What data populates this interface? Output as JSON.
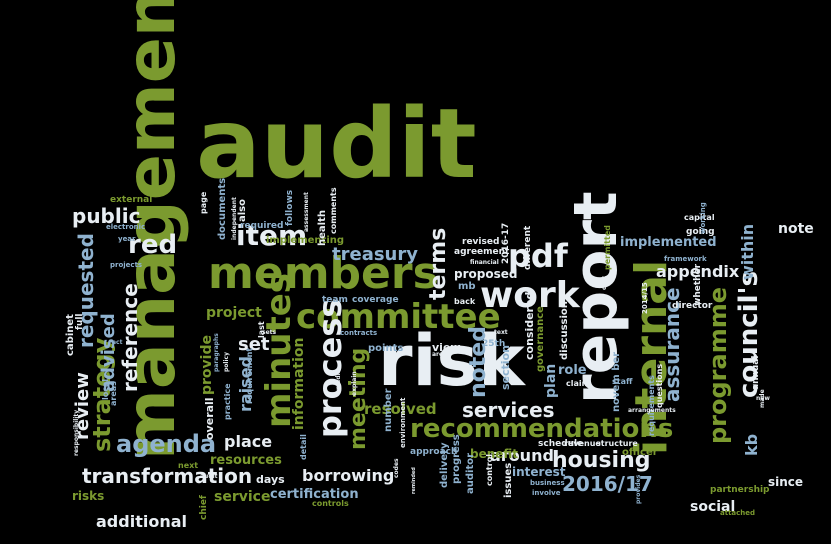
{
  "word_cloud": {
    "background_color": "#000000",
    "palette": [
      "#7b9a2f",
      "#8fb2cf",
      "#e8eef3",
      "#5d7a24"
    ],
    "words": [
      "management",
      "audit",
      "report",
      "risk",
      "members",
      "committee",
      "minutes",
      "internal",
      "process",
      "recommendations",
      "council's",
      "programme",
      "pdf",
      "work",
      "terms",
      "item",
      "red",
      "public",
      "requested",
      "strategy",
      "agenda",
      "transformation",
      "housing",
      "2016/17",
      "noted",
      "meeting",
      "services",
      "treasury",
      "advised",
      "reference",
      "review",
      "assurance",
      "appendix",
      "within",
      "note",
      "kb",
      "borrowing",
      "certification",
      "additional",
      "social",
      "resolved",
      "provide",
      "raised",
      "set",
      "project",
      "place",
      "service",
      "information",
      "around",
      "plan",
      "role",
      "implemented",
      "proposed",
      "agreement",
      "revised",
      "external",
      "also",
      "documents",
      "implementing",
      "days",
      "risks",
      "view",
      "number",
      "benefit",
      "interest",
      "officer",
      "delivery",
      "progress",
      "mb",
      "team",
      "coverage",
      "resources",
      "overall",
      "cabinet",
      "chief",
      "director",
      "whether",
      "annual",
      "since",
      "partnership",
      "capital",
      "staff",
      "section",
      "governance",
      "discussion",
      "schedule",
      "issues",
      "contracts",
      "points",
      "health",
      "comments",
      "follows",
      "required",
      "page",
      "electronic",
      "year",
      "local",
      "areas",
      "responsibility",
      "full",
      "considered",
      "different",
      "2016-17",
      "permitted",
      "framework",
      "going",
      "working",
      "questions",
      "requirements",
      "2014/15",
      "control",
      "auditor",
      "approach",
      "business",
      "involve",
      "revenue",
      "structure",
      "next",
      "attached",
      "controls",
      "detail",
      "last",
      "requirement",
      "practice",
      "financial",
      "back",
      "claim",
      "arrangements",
      "provides",
      "audit",
      "policy",
      "media",
      "paragraphs",
      "projects",
      "independent",
      "assessment",
      "explain",
      "environment",
      "reminded",
      "area",
      "made",
      "new",
      "sets",
      "act",
      "25th",
      "text",
      "codes",
      "novem ber",
      "cost"
    ]
  }
}
